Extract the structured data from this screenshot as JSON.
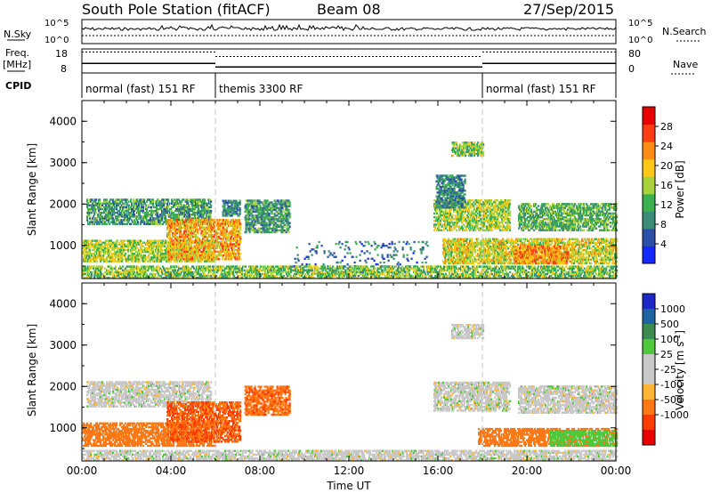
{
  "header": {
    "station": "South Pole Station (fitACF)",
    "beam": "Beam 08",
    "date": "27/Sep/2015"
  },
  "summary": {
    "left_labels": {
      "nsky": "N.Sky",
      "freq": "Freq.",
      "freq_unit": "[MHz]",
      "cpid": "CPID"
    },
    "right_labels": {
      "nsearch": "N.Search",
      "nave": "Nave"
    },
    "noise_ticks_left": [
      "10^5",
      "10^0"
    ],
    "noise_ticks_right": [
      "10^5",
      "10^0"
    ],
    "freq_ticks": [
      "18",
      "8"
    ],
    "nave_ticks": [
      "80",
      "0"
    ],
    "cpid_segments": [
      {
        "label": "normal (fast) 151 RF",
        "start_h": 0,
        "end_h": 6
      },
      {
        "label": "themis 3300 RF",
        "start_h": 6,
        "end_h": 18
      },
      {
        "label": "normal (fast) 151 RF",
        "start_h": 18,
        "end_h": 24
      }
    ],
    "freq_steps": [
      {
        "start_h": 0,
        "end_h": 6,
        "freq_mhz": 12.0
      },
      {
        "start_h": 6,
        "end_h": 18,
        "freq_mhz": 10.5
      },
      {
        "start_h": 18,
        "end_h": 24,
        "freq_mhz": 12.0
      }
    ],
    "nave_steps": [
      {
        "start_h": 0,
        "end_h": 6,
        "nave": 70
      },
      {
        "start_h": 6,
        "end_h": 18,
        "nave": 55
      },
      {
        "start_h": 18,
        "end_h": 24,
        "nave": 70
      }
    ]
  },
  "chart_data": [
    {
      "type": "heatmap",
      "parameter": "power",
      "xlabel": "",
      "ylabel": "Slant Range [km]",
      "xlim": [
        0,
        24
      ],
      "ylim": [
        200,
        4500
      ],
      "yticks": [
        "1000",
        "2000",
        "3000",
        "4000"
      ],
      "colorbar_label": "Power [dB]",
      "colorbar_ticks": [
        "4",
        "8",
        "12",
        "16",
        "20",
        "24",
        "28"
      ],
      "colorbar_range": [
        0,
        32
      ],
      "colors": [
        "#1428ff",
        "#2c50a8",
        "#3c8c78",
        "#3cb050",
        "#a8d23c",
        "#ffc814",
        "#ff8c14",
        "#ff3c14",
        "#e60000"
      ],
      "regions": [
        {
          "x0": 0.2,
          "x1": 5.8,
          "y0": 1500,
          "y1": 2100,
          "value": 12
        },
        {
          "x0": 0.0,
          "x1": 6.0,
          "y0": 600,
          "y1": 1100,
          "value": 18
        },
        {
          "x0": 3.8,
          "x1": 7.1,
          "y0": 650,
          "y1": 1600,
          "value": 24
        },
        {
          "x0": 6.3,
          "x1": 7.1,
          "y0": 1700,
          "y1": 2100,
          "value": 10
        },
        {
          "x0": 7.3,
          "x1": 9.3,
          "y0": 1300,
          "y1": 2100,
          "value": 12
        },
        {
          "x0": 15.8,
          "x1": 19.2,
          "y0": 1350,
          "y1": 2100,
          "value": 18
        },
        {
          "x0": 15.9,
          "x1": 17.2,
          "y0": 1900,
          "y1": 2700,
          "value": 10
        },
        {
          "x0": 16.6,
          "x1": 18.0,
          "y0": 3150,
          "y1": 3500,
          "value": 16
        },
        {
          "x0": 19.6,
          "x1": 24.0,
          "y0": 1350,
          "y1": 2000,
          "value": 14
        },
        {
          "x0": 16.2,
          "x1": 24.0,
          "y0": 550,
          "y1": 1150,
          "value": 20
        },
        {
          "x0": 19.4,
          "x1": 21.8,
          "y0": 550,
          "y1": 1000,
          "value": 26
        },
        {
          "x0": 9.5,
          "x1": 15.5,
          "y0": 300,
          "y1": 1100,
          "value": 8
        },
        {
          "x0": 0.0,
          "x1": 24.0,
          "y0": 200,
          "y1": 500,
          "value": 16
        }
      ]
    },
    {
      "type": "heatmap",
      "parameter": "velocity",
      "xlabel": "Time UT",
      "ylabel": "Slant Range [km]",
      "xlim": [
        0,
        24
      ],
      "ylim": [
        200,
        4500
      ],
      "xticks": [
        "00:00",
        "04:00",
        "08:00",
        "12:00",
        "16:00",
        "20:00",
        "00:00"
      ],
      "yticks": [
        "1000",
        "2000",
        "3000",
        "4000"
      ],
      "colorbar_label": "Velocity [m s^-1]",
      "colorbar_ticks": [
        "1000",
        "500",
        "100",
        "25",
        "-25",
        "-100",
        "-500",
        "-1000"
      ],
      "colors": [
        "#1e28c8",
        "#1e64a0",
        "#3c8c50",
        "#50c83c",
        "#c8c8c8",
        "#c8c8c8",
        "#ffb432",
        "#ff7814",
        "#ff3c00",
        "#e60000"
      ],
      "regions": [
        {
          "x0": 0.2,
          "x1": 5.8,
          "y0": 1500,
          "y1": 2100,
          "value": 0
        },
        {
          "x0": 0.0,
          "x1": 6.0,
          "y0": 550,
          "y1": 1100,
          "value": -200
        },
        {
          "x0": 3.8,
          "x1": 7.1,
          "y0": 650,
          "y1": 1600,
          "value": -500
        },
        {
          "x0": 7.3,
          "x1": 9.3,
          "y0": 1300,
          "y1": 2000,
          "value": -400
        },
        {
          "x0": 15.8,
          "x1": 19.2,
          "y0": 1400,
          "y1": 2100,
          "value": 0
        },
        {
          "x0": 16.6,
          "x1": 18.0,
          "y0": 3150,
          "y1": 3500,
          "value": 0
        },
        {
          "x0": 19.6,
          "x1": 24.0,
          "y0": 1350,
          "y1": 2000,
          "value": 0
        },
        {
          "x0": 17.8,
          "x1": 24.0,
          "y0": 550,
          "y1": 1000,
          "value": -200
        },
        {
          "x0": 21.0,
          "x1": 24.0,
          "y0": 550,
          "y1": 950,
          "value": 50
        },
        {
          "x0": 0.0,
          "x1": 24.0,
          "y0": 200,
          "y1": 450,
          "value": 0
        }
      ]
    }
  ]
}
